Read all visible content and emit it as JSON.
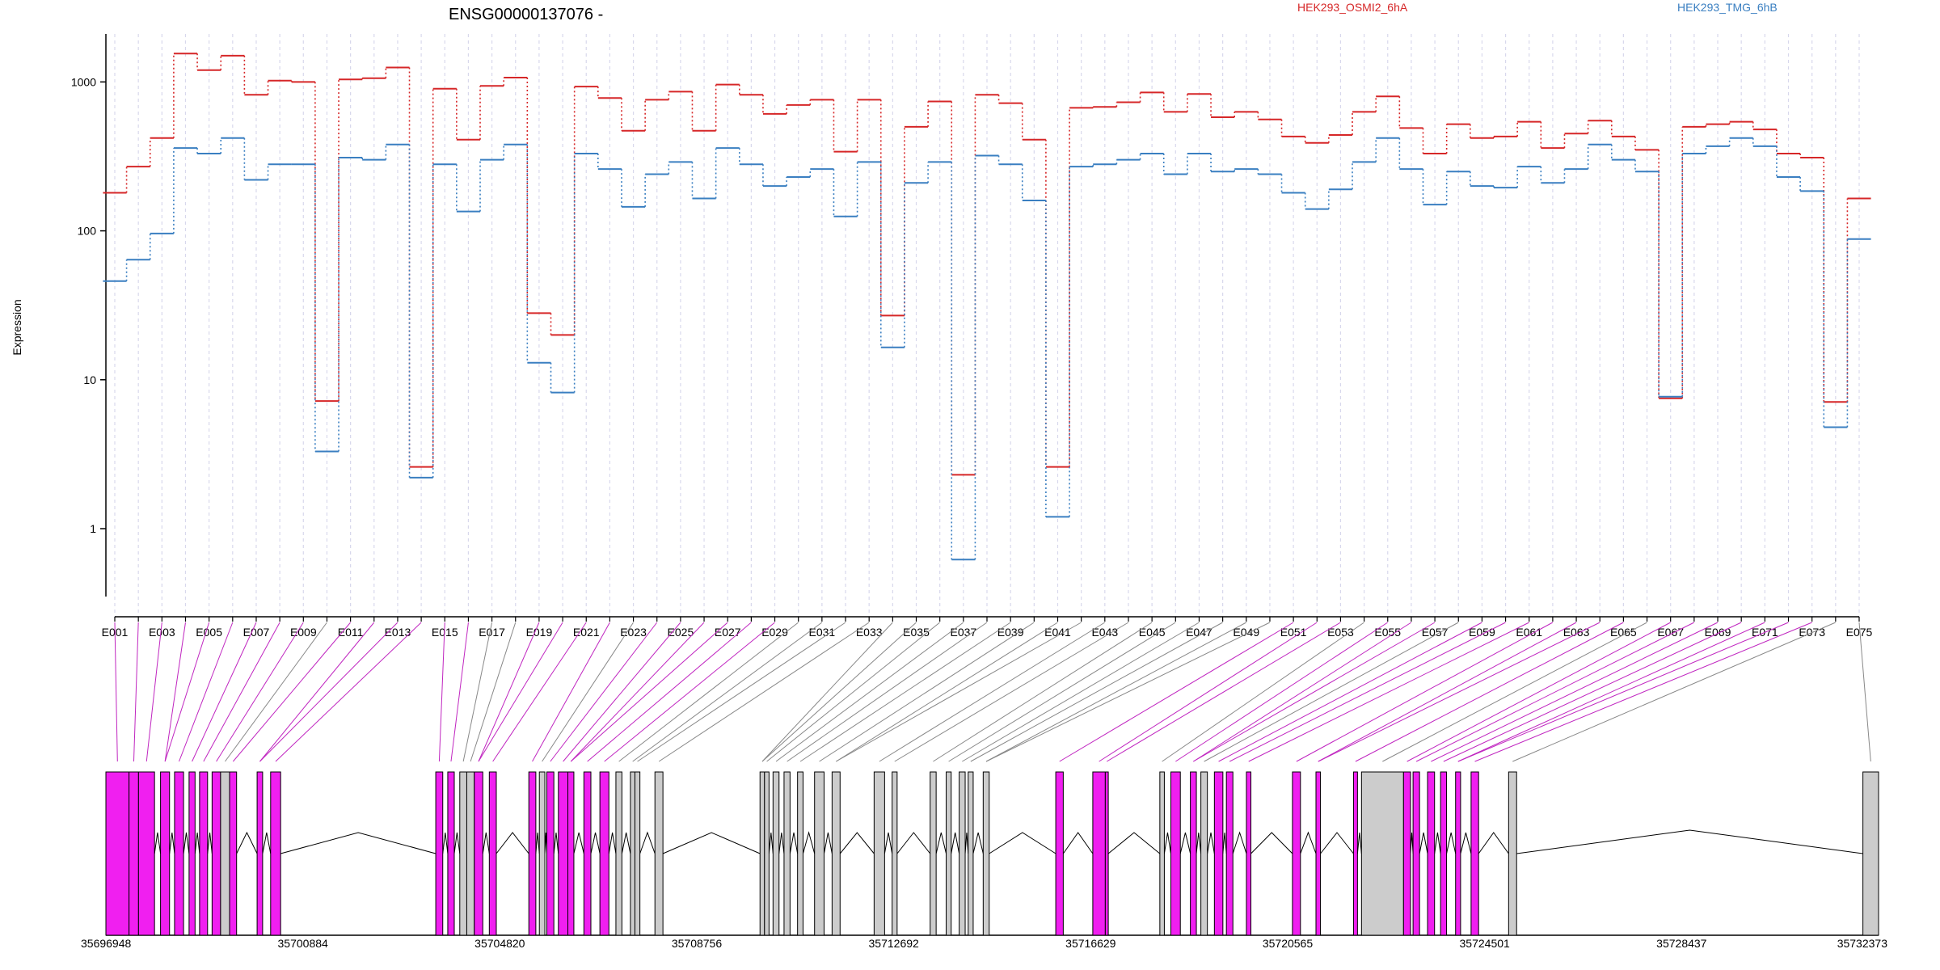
{
  "chart_data": {
    "type": "line",
    "title": "ENSG00000137076 -",
    "ylabel": "Expression",
    "y_scale": "log",
    "ylim": [
      0.35,
      2100
    ],
    "y_ticks": [
      1,
      10,
      100,
      1000
    ],
    "y_tick_labels": [
      "1",
      "10",
      "100",
      "1000"
    ],
    "grid": "vertical dashed lines per exon",
    "legend_placement": "top",
    "categories": [
      "E001",
      "E002",
      "E003",
      "E004",
      "E005",
      "E006",
      "E007",
      "E008",
      "E009",
      "E010",
      "E011",
      "E012",
      "E013",
      "E014",
      "E015",
      "E016",
      "E017",
      "E018",
      "E019",
      "E020",
      "E021",
      "E022",
      "E023",
      "E024",
      "E025",
      "E026",
      "E027",
      "E028",
      "E029",
      "E030",
      "E031",
      "E032",
      "E033",
      "E034",
      "E035",
      "E036",
      "E037",
      "E038",
      "E039",
      "E040",
      "E041",
      "E042",
      "E043",
      "E044",
      "E045",
      "E046",
      "E047",
      "E048",
      "E049",
      "E050",
      "E051",
      "E052",
      "E053",
      "E054",
      "E055",
      "E056",
      "E057",
      "E058",
      "E059",
      "E060",
      "E061",
      "E062",
      "E063",
      "E064",
      "E065",
      "E066",
      "E067",
      "E068",
      "E069",
      "E070",
      "E071",
      "E072",
      "E073",
      "E074",
      "E075"
    ],
    "x_tick_labels": [
      "E001",
      "E003",
      "E005",
      "E007",
      "E009",
      "E011",
      "E013",
      "E015",
      "E017",
      "E019",
      "E021",
      "E023",
      "E025",
      "E027",
      "E029",
      "E031",
      "E033",
      "E035",
      "E037",
      "E039",
      "E041",
      "E043",
      "E045",
      "E047",
      "E049",
      "E051",
      "E053",
      "E055",
      "E057",
      "E059",
      "E061",
      "E063",
      "E065",
      "E067",
      "E069",
      "E071",
      "E073",
      "E075"
    ],
    "series": [
      {
        "name": "HEK293_OSMI2_6hA",
        "color": "#d62728",
        "values": [
          180,
          270,
          420,
          1550,
          1200,
          1500,
          820,
          1020,
          1000,
          7.2,
          1040,
          1060,
          1250,
          2.6,
          900,
          410,
          940,
          1070,
          28,
          20,
          930,
          780,
          470,
          760,
          860,
          470,
          960,
          820,
          610,
          700,
          760,
          340,
          760,
          27,
          500,
          740,
          2.3,
          820,
          720,
          410,
          2.6,
          670,
          680,
          730,
          850,
          630,
          830,
          580,
          630,
          560,
          430,
          390,
          440,
          630,
          800,
          490,
          330,
          520,
          420,
          430,
          540,
          360,
          450,
          550,
          430,
          350,
          7.5,
          500,
          520,
          540,
          480,
          330,
          310,
          7.1,
          165
        ]
      },
      {
        "name": "HEK293_TMG_6hB",
        "color": "#3a7fc1",
        "values": [
          46,
          64,
          96,
          360,
          330,
          420,
          220,
          280,
          280,
          3.3,
          310,
          300,
          380,
          2.2,
          280,
          135,
          300,
          380,
          13,
          8.2,
          330,
          260,
          145,
          240,
          290,
          165,
          360,
          280,
          200,
          230,
          260,
          125,
          290,
          16.5,
          210,
          290,
          0.62,
          320,
          280,
          160,
          1.2,
          270,
          280,
          300,
          330,
          240,
          330,
          250,
          260,
          240,
          180,
          140,
          190,
          290,
          420,
          260,
          150,
          250,
          200,
          195,
          270,
          210,
          260,
          380,
          300,
          250,
          7.7,
          330,
          370,
          420,
          370,
          230,
          185,
          4.8,
          88
        ]
      }
    ]
  },
  "gene_model": {
    "coordinate_labels": [
      "35696948",
      "35700884",
      "35704820",
      "35708756",
      "35712692",
      "35716629",
      "35720565",
      "35724501",
      "35728437",
      "35732373"
    ],
    "coord_start": 35696948,
    "coord_end": 35732373,
    "colors": {
      "highlight": "#f01ff0",
      "normal": "#cccccc",
      "outline": "#000000"
    },
    "exons": [
      {
        "start": 35696948,
        "end": 35697410,
        "color": "highlight"
      },
      {
        "start": 35697410,
        "end": 35697600,
        "color": "highlight"
      },
      {
        "start": 35697600,
        "end": 35697920,
        "color": "highlight"
      },
      {
        "start": 35698040,
        "end": 35698220,
        "color": "highlight"
      },
      {
        "start": 35698320,
        "end": 35698500,
        "color": "highlight"
      },
      {
        "start": 35698610,
        "end": 35698730,
        "color": "highlight"
      },
      {
        "start": 35698820,
        "end": 35698980,
        "color": "highlight"
      },
      {
        "start": 35699070,
        "end": 35699240,
        "color": "highlight"
      },
      {
        "start": 35699240,
        "end": 35699420,
        "color": "normal"
      },
      {
        "start": 35699420,
        "end": 35699560,
        "color": "highlight"
      },
      {
        "start": 35699970,
        "end": 35700080,
        "color": "highlight"
      },
      {
        "start": 35700240,
        "end": 35700440,
        "color": "highlight"
      },
      {
        "start": 35703540,
        "end": 35703680,
        "color": "highlight"
      },
      {
        "start": 35703780,
        "end": 35703910,
        "color": "highlight"
      },
      {
        "start": 35704020,
        "end": 35704160,
        "color": "normal"
      },
      {
        "start": 35704160,
        "end": 35704310,
        "color": "normal"
      },
      {
        "start": 35704310,
        "end": 35704480,
        "color": "highlight"
      },
      {
        "start": 35704610,
        "end": 35704750,
        "color": "highlight"
      },
      {
        "start": 35705400,
        "end": 35705540,
        "color": "highlight"
      },
      {
        "start": 35705610,
        "end": 35705720,
        "color": "normal"
      },
      {
        "start": 35705760,
        "end": 35705900,
        "color": "highlight"
      },
      {
        "start": 35705990,
        "end": 35706180,
        "color": "highlight"
      },
      {
        "start": 35706180,
        "end": 35706300,
        "color": "highlight"
      },
      {
        "start": 35706500,
        "end": 35706640,
        "color": "highlight"
      },
      {
        "start": 35706820,
        "end": 35707000,
        "color": "highlight"
      },
      {
        "start": 35707140,
        "end": 35707260,
        "color": "normal"
      },
      {
        "start": 35707430,
        "end": 35707520,
        "color": "normal"
      },
      {
        "start": 35707520,
        "end": 35707620,
        "color": "normal"
      },
      {
        "start": 35707920,
        "end": 35708080,
        "color": "normal"
      },
      {
        "start": 35710020,
        "end": 35710110,
        "color": "normal"
      },
      {
        "start": 35710110,
        "end": 35710200,
        "color": "normal"
      },
      {
        "start": 35710280,
        "end": 35710400,
        "color": "normal"
      },
      {
        "start": 35710500,
        "end": 35710620,
        "color": "normal"
      },
      {
        "start": 35710770,
        "end": 35710880,
        "color": "normal"
      },
      {
        "start": 35711110,
        "end": 35711300,
        "color": "normal"
      },
      {
        "start": 35711460,
        "end": 35711620,
        "color": "normal"
      },
      {
        "start": 35712300,
        "end": 35712510,
        "color": "normal"
      },
      {
        "start": 35712660,
        "end": 35712760,
        "color": "normal"
      },
      {
        "start": 35713420,
        "end": 35713540,
        "color": "normal"
      },
      {
        "start": 35713740,
        "end": 35713840,
        "color": "normal"
      },
      {
        "start": 35714000,
        "end": 35714120,
        "color": "normal"
      },
      {
        "start": 35714180,
        "end": 35714280,
        "color": "normal"
      },
      {
        "start": 35714480,
        "end": 35714600,
        "color": "normal"
      },
      {
        "start": 35715930,
        "end": 35716080,
        "color": "highlight"
      },
      {
        "start": 35716670,
        "end": 35716920,
        "color": "highlight"
      },
      {
        "start": 35716920,
        "end": 35716980,
        "color": "highlight"
      },
      {
        "start": 35718010,
        "end": 35718100,
        "color": "normal"
      },
      {
        "start": 35718230,
        "end": 35718420,
        "color": "highlight"
      },
      {
        "start": 35718620,
        "end": 35718740,
        "color": "highlight"
      },
      {
        "start": 35718830,
        "end": 35718960,
        "color": "normal"
      },
      {
        "start": 35719100,
        "end": 35719270,
        "color": "highlight"
      },
      {
        "start": 35719340,
        "end": 35719470,
        "color": "highlight"
      },
      {
        "start": 35719740,
        "end": 35719830,
        "color": "highlight"
      },
      {
        "start": 35720660,
        "end": 35720820,
        "color": "highlight"
      },
      {
        "start": 35721130,
        "end": 35721220,
        "color": "highlight"
      },
      {
        "start": 35721880,
        "end": 35721960,
        "color": "highlight"
      },
      {
        "start": 35722040,
        "end": 35722880,
        "color": "normal"
      },
      {
        "start": 35722880,
        "end": 35723020,
        "color": "highlight"
      },
      {
        "start": 35723070,
        "end": 35723200,
        "color": "highlight"
      },
      {
        "start": 35723360,
        "end": 35723500,
        "color": "highlight"
      },
      {
        "start": 35723620,
        "end": 35723740,
        "color": "highlight"
      },
      {
        "start": 35723920,
        "end": 35724020,
        "color": "highlight"
      },
      {
        "start": 35724230,
        "end": 35724380,
        "color": "highlight"
      },
      {
        "start": 35724980,
        "end": 35725140,
        "color": "normal"
      },
      {
        "start": 35732060,
        "end": 35732373,
        "color": "normal"
      }
    ]
  }
}
